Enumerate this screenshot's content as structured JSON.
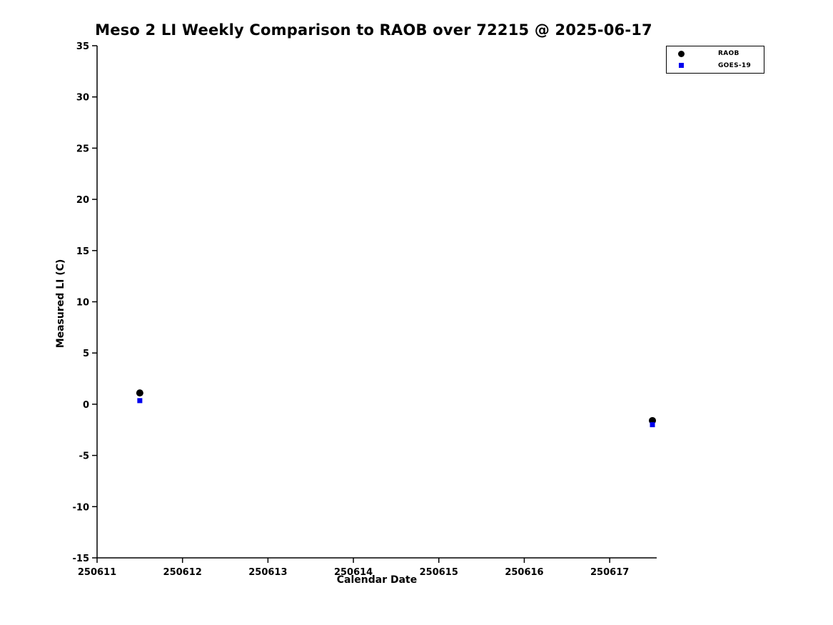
{
  "chart_data": {
    "type": "scatter",
    "title": "Meso 2 LI Weekly Comparison to RAOB over 72215 @ 2025-06-17",
    "xlabel": "Calendar Date",
    "ylabel": "Measured LI (C)",
    "xlim": [
      250611,
      250617.55
    ],
    "ylim": [
      -15,
      35
    ],
    "xticks": [
      250611,
      250612,
      250613,
      250614,
      250615,
      250616,
      250617
    ],
    "yticks": [
      35,
      30,
      25,
      20,
      15,
      10,
      5,
      0,
      -5,
      -10,
      -15
    ],
    "grid": false,
    "legend_position": "top-right-outside",
    "axis_color": "#000000",
    "series": [
      {
        "name": "RAOB",
        "marker": "circle",
        "color": "#000000",
        "points": [
          [
            250611.5,
            1.1
          ],
          [
            250617.5,
            -1.6
          ]
        ]
      },
      {
        "name": "GOES-19",
        "marker": "square",
        "color": "#0000ee",
        "points": [
          [
            250611.5,
            0.35
          ],
          [
            250617.5,
            -2.0
          ]
        ]
      }
    ]
  }
}
